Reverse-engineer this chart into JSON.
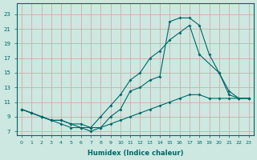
{
  "xlabel": "Humidex (Indice chaleur)",
  "bg_color": "#cce8e0",
  "grid_color": "#e8c8c8",
  "line_color": "#006868",
  "xlim": [
    -0.5,
    23.5
  ],
  "ylim": [
    6.5,
    24.5
  ],
  "xticks": [
    0,
    1,
    2,
    3,
    4,
    5,
    6,
    7,
    8,
    9,
    10,
    11,
    12,
    13,
    14,
    15,
    16,
    17,
    18,
    19,
    20,
    21,
    22,
    23
  ],
  "yticks": [
    7,
    9,
    11,
    13,
    15,
    17,
    19,
    21,
    23
  ],
  "line1": {
    "x": [
      0,
      1,
      2,
      3,
      4,
      5,
      6,
      7,
      8,
      9,
      10,
      11,
      12,
      13,
      14,
      15,
      16,
      17,
      18,
      19,
      20,
      21,
      22,
      23
    ],
    "y": [
      10,
      9.5,
      9,
      8.5,
      8.5,
      8,
      7.5,
      7.5,
      7.5,
      8,
      8.5,
      9,
      9.5,
      10,
      10.5,
      11,
      11.5,
      12,
      12,
      11.5,
      11.5,
      11.5,
      11.5,
      11.5
    ]
  },
  "line2": {
    "x": [
      0,
      1,
      2,
      3,
      4,
      5,
      6,
      7,
      8,
      9,
      10,
      11,
      12,
      13,
      14,
      15,
      16,
      17,
      18,
      20,
      21,
      22,
      23
    ],
    "y": [
      10,
      9.5,
      9,
      8.5,
      8.5,
      8,
      8,
      7.5,
      9,
      10.5,
      12,
      14,
      15,
      17,
      18,
      19.5,
      20.5,
      21.5,
      17.5,
      15,
      12,
      11.5,
      11.5
    ]
  },
  "line3": {
    "x": [
      0,
      1,
      2,
      3,
      4,
      5,
      6,
      7,
      8,
      9,
      10,
      11,
      12,
      13,
      14,
      15,
      16,
      17,
      18,
      19,
      20,
      21,
      22,
      23
    ],
    "y": [
      10,
      9.5,
      9,
      8.5,
      8,
      7.5,
      7.5,
      7,
      7.5,
      9,
      10,
      12.5,
      13,
      14,
      14.5,
      22,
      22.5,
      22.5,
      21.5,
      17.5,
      15,
      12.5,
      11.5,
      11.5
    ]
  }
}
